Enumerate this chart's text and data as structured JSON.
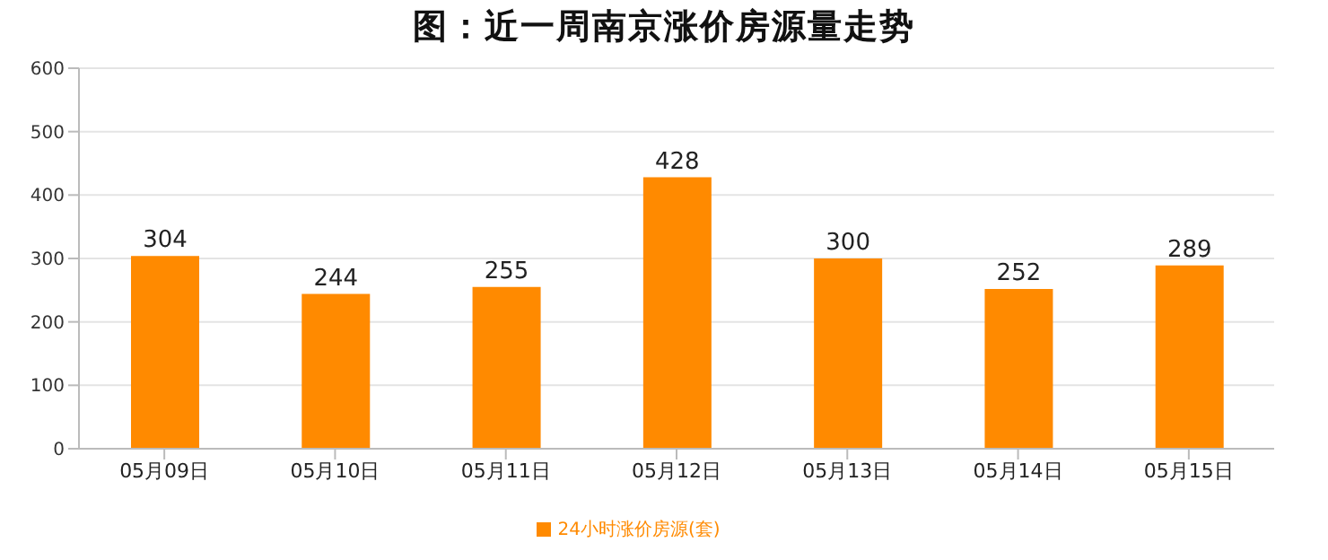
{
  "chart_data": {
    "type": "bar",
    "title": "图：近一周南京涨价房源量走势",
    "categories": [
      "05月09日",
      "05月10日",
      "05月11日",
      "05月12日",
      "05月13日",
      "05月14日",
      "05月15日"
    ],
    "series": [
      {
        "name": "24小时涨价房源(套)",
        "color": "#ff8a00",
        "values": [
          304,
          244,
          255,
          428,
          300,
          252,
          289
        ]
      }
    ],
    "ylim": [
      0,
      600
    ],
    "yticks": [
      0,
      100,
      200,
      300,
      400,
      500,
      600
    ],
    "grid": "y",
    "legend": "bottom",
    "data_labels": true
  }
}
